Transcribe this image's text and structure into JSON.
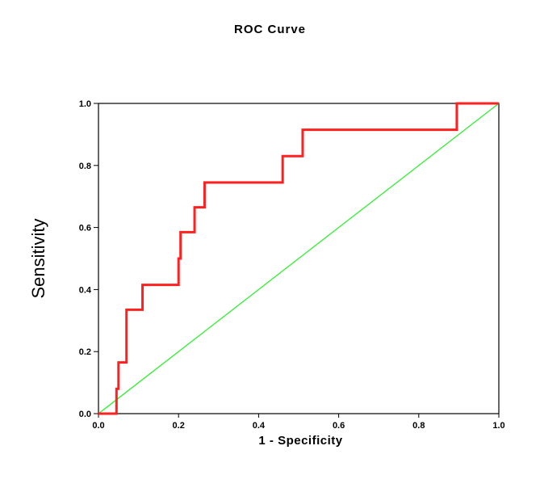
{
  "chart_data": {
    "type": "line",
    "title": "ROC Curve",
    "xlabel": "1 - Specificity",
    "ylabel": "Sensitivity",
    "xlim": [
      0.0,
      1.0
    ],
    "ylim": [
      0.0,
      1.0
    ],
    "x_ticks": [
      "0.0",
      "0.2",
      "0.4",
      "0.6",
      "0.8",
      "1.0"
    ],
    "y_ticks": [
      "0.0",
      "0.2",
      "0.4",
      "0.6",
      "0.8",
      "1.0"
    ],
    "grid": false,
    "legend": "none",
    "series": [
      {
        "color": "#ff2020",
        "x": [
          0.0,
          0.045,
          0.045,
          0.05,
          0.05,
          0.07,
          0.07,
          0.11,
          0.11,
          0.2,
          0.2,
          0.205,
          0.205,
          0.24,
          0.24,
          0.265,
          0.265,
          0.46,
          0.46,
          0.51,
          0.51,
          0.895,
          0.895,
          1.0
        ],
        "y": [
          0.0,
          0.0,
          0.08,
          0.08,
          0.165,
          0.165,
          0.335,
          0.335,
          0.415,
          0.415,
          0.5,
          0.5,
          0.585,
          0.585,
          0.665,
          0.665,
          0.745,
          0.745,
          0.83,
          0.83,
          0.915,
          0.915,
          1.0,
          1.0
        ]
      },
      {
        "color": "#33ee33",
        "x": [
          0.0,
          1.0
        ],
        "y": [
          0.0,
          1.0
        ]
      }
    ]
  }
}
